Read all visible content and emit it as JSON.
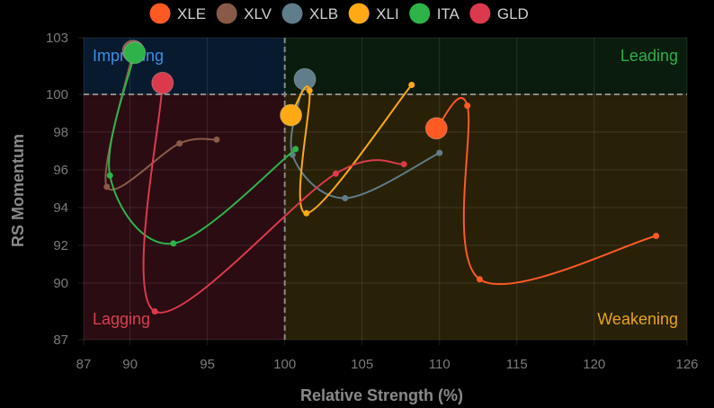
{
  "chart_data": {
    "type": "scatter",
    "xlabel": "Relative Strength (%)",
    "ylabel": "RS Momentum",
    "xlim": [
      87,
      126
    ],
    "ylim": [
      87,
      103
    ],
    "x_ticks": [
      "87",
      "90",
      "95",
      "100",
      "105",
      "110",
      "115",
      "120",
      "126"
    ],
    "y_ticks": [
      "87",
      "90",
      "92",
      "94",
      "96",
      "98",
      "100",
      "103"
    ],
    "reference_lines": {
      "x": 100,
      "y": 100
    },
    "grid": true,
    "legend_position": "top",
    "quadrants": [
      {
        "label": "Improving",
        "color": "#3d8ee8"
      },
      {
        "label": "Leading",
        "color": "#2fae4a"
      },
      {
        "label": "Lagging",
        "color": "#d9404f"
      },
      {
        "label": "Weakening",
        "color": "#e7a416"
      }
    ],
    "series": [
      {
        "name": "XLE",
        "color": "#ff5a22",
        "points": [
          [
            124,
            92.5
          ],
          [
            112.6,
            90.2
          ],
          [
            111.8,
            99.4
          ],
          [
            109.8,
            98.2
          ]
        ]
      },
      {
        "name": "XLV",
        "color": "#8a5a48",
        "points": [
          [
            95.6,
            97.6
          ],
          [
            93.2,
            97.4
          ],
          [
            88.5,
            95.1
          ],
          [
            90.2,
            102.3
          ]
        ]
      },
      {
        "name": "XLB",
        "color": "#607d8b",
        "points": [
          [
            110,
            96.9
          ],
          [
            103.9,
            94.5
          ],
          [
            100.5,
            96.8
          ],
          [
            101.3,
            100.8
          ]
        ]
      },
      {
        "name": "XLI",
        "color": "#ffa914",
        "points": [
          [
            108.2,
            100.5
          ],
          [
            101.4,
            93.7
          ],
          [
            101.6,
            100.2
          ],
          [
            100.4,
            98.9
          ]
        ]
      },
      {
        "name": "ITA",
        "color": "#2eb34a",
        "points": [
          [
            100.7,
            97.1
          ],
          [
            92.8,
            92.1
          ],
          [
            88.7,
            95.7
          ],
          [
            90.3,
            102.2
          ]
        ]
      },
      {
        "name": "GLD",
        "color": "#dc3a4c",
        "points": [
          [
            107.7,
            96.3
          ],
          [
            103.3,
            95.8
          ],
          [
            91.6,
            88.5
          ],
          [
            92.1,
            100.6
          ]
        ]
      }
    ]
  }
}
